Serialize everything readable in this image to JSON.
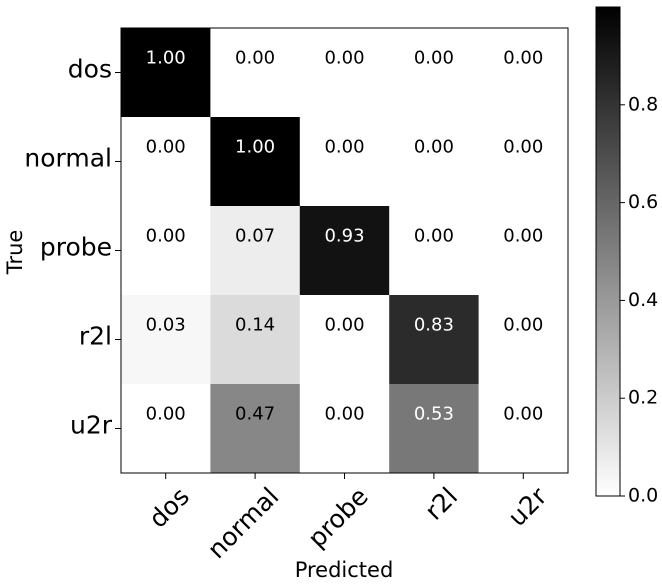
{
  "chart_data": {
    "type": "heatmap",
    "xlabel": "Predicted",
    "ylabel": "True",
    "x_categories": [
      "dos",
      "normal",
      "probe",
      "r2l",
      "u2r"
    ],
    "y_categories": [
      "dos",
      "normal",
      "probe",
      "r2l",
      "u2r"
    ],
    "values": [
      [
        1.0,
        0.0,
        0.0,
        0.0,
        0.0
      ],
      [
        0.0,
        1.0,
        0.0,
        0.0,
        0.0
      ],
      [
        0.0,
        0.07,
        0.93,
        0.0,
        0.0
      ],
      [
        0.03,
        0.14,
        0.0,
        0.83,
        0.0
      ],
      [
        0.0,
        0.47,
        0.0,
        0.53,
        0.0
      ]
    ],
    "cell_labels": [
      [
        "1.00",
        "0.00",
        "0.00",
        "0.00",
        "0.00"
      ],
      [
        "0.00",
        "1.00",
        "0.00",
        "0.00",
        "0.00"
      ],
      [
        "0.00",
        "0.07",
        "0.93",
        "0.00",
        "0.00"
      ],
      [
        "0.03",
        "0.14",
        "0.00",
        "0.83",
        "0.00"
      ],
      [
        "0.00",
        "0.47",
        "0.00",
        "0.53",
        "0.00"
      ]
    ],
    "colorscale": "greys",
    "color_min": "#ffffff",
    "color_max": "#000000",
    "colorbar": {
      "range": [
        0.0,
        1.0
      ],
      "ticks": [
        0.0,
        0.2,
        0.4,
        0.6,
        0.8
      ],
      "tick_labels": [
        "0.0",
        "0.2",
        "0.4",
        "0.6",
        "0.8"
      ]
    }
  }
}
